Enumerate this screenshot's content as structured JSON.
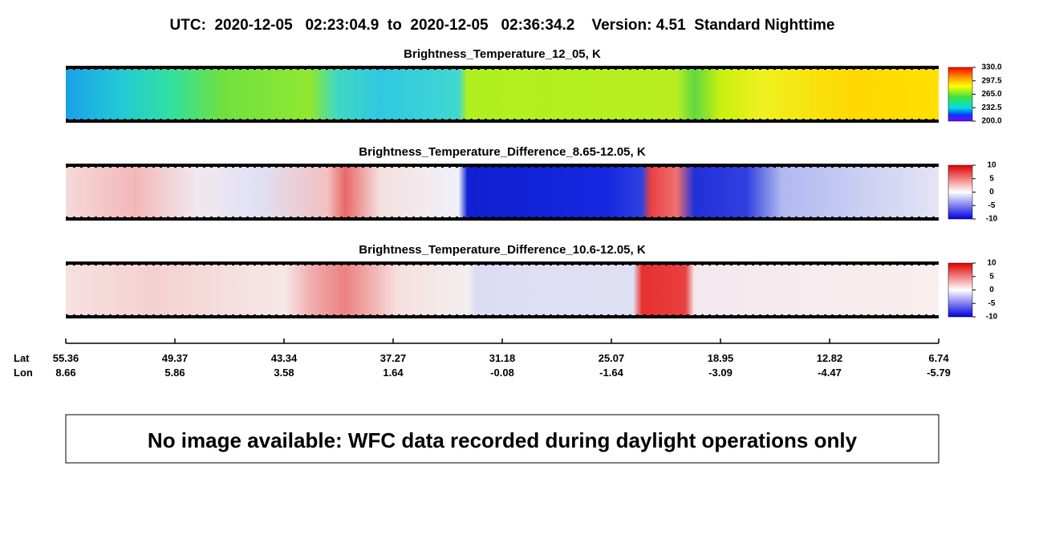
{
  "header": {
    "title": "UTC:  2020-12-05   02:23:04.9  to  2020-12-05   02:36:34.2    Version: 4.51  Standard Nighttime"
  },
  "panels": [
    {
      "title": "Brightness_Temperature_12_05, K",
      "colorbar_labels": [
        "330.0",
        "297.5",
        "265.0",
        "232.5",
        "200.0"
      ]
    },
    {
      "title": "Brightness_Temperature_Difference_8.65-12.05, K",
      "colorbar_labels": [
        "10",
        "5",
        "0",
        "-5",
        "-10"
      ]
    },
    {
      "title": "Brightness_Temperature_Difference_10.6-12.05, K",
      "colorbar_labels": [
        "10",
        "5",
        "0",
        "-5",
        "-10"
      ]
    }
  ],
  "axis": {
    "lat_label": "Lat",
    "lon_label": "Lon",
    "lat": [
      "55.36",
      "49.37",
      "43.34",
      "37.27",
      "31.18",
      "25.07",
      "18.95",
      "12.82",
      "6.74"
    ],
    "lon": [
      "8.66",
      "5.86",
      "3.58",
      "1.64",
      "-0.08",
      "-1.64",
      "-3.09",
      "-4.47",
      "-5.79"
    ]
  },
  "notice": "No image available: WFC data recorded during daylight operations only"
}
